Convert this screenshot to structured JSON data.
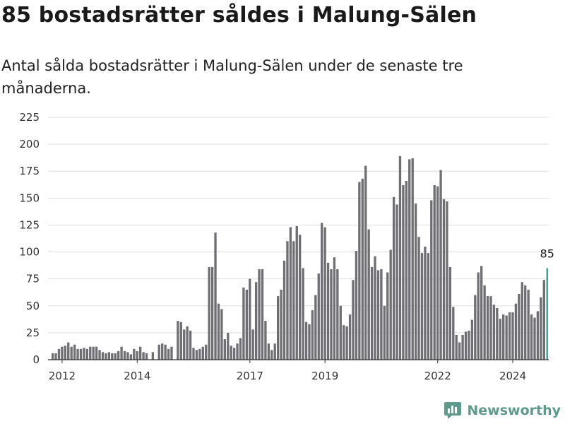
{
  "title": "85 bostadsrätter såldes i Malung-Sälen",
  "subtitle": "Antal sålda bostadsrätter i Malung-Sälen under de senaste tre månaderna.",
  "brand": {
    "name": "Newsworthy",
    "color": "#5f9b8c"
  },
  "chart_data": {
    "type": "bar",
    "title": "",
    "xlabel": "",
    "ylabel": "",
    "ylim": [
      0,
      225
    ],
    "yticks": [
      0,
      25,
      50,
      75,
      100,
      125,
      150,
      175,
      200,
      225
    ],
    "grid": true,
    "x_start": "2011-09",
    "x_end": "2024-12",
    "xticks": [
      "2012",
      "2014",
      "2017",
      "2019",
      "2022",
      "2024"
    ],
    "bar_color": "#6e6e73",
    "highlight_color": "#1f9c8c",
    "highlight_label": "85",
    "series": [
      {
        "values": [
          0,
          0,
          0,
          0,
          0,
          6,
          6,
          10,
          12,
          13,
          16,
          12,
          14,
          10,
          10,
          11,
          10,
          12,
          12,
          12,
          9,
          7,
          6,
          7,
          6,
          6,
          8,
          12,
          8,
          7,
          5,
          10,
          8,
          12,
          7,
          6,
          0,
          7,
          0,
          14,
          15,
          14,
          10,
          12,
          0,
          36,
          35,
          28,
          31,
          27,
          11,
          9,
          10,
          12,
          14,
          86,
          86,
          118,
          52,
          47,
          19,
          25,
          13,
          11,
          15,
          20,
          67,
          65,
          75,
          28,
          72,
          84,
          84,
          36,
          15,
          9,
          15,
          59,
          65,
          92,
          110,
          123,
          110,
          124,
          116,
          85,
          35,
          33,
          46,
          60,
          80,
          127,
          123,
          90,
          84,
          95,
          84,
          50,
          32,
          31,
          42,
          74,
          101,
          165,
          168,
          180,
          121,
          86,
          96,
          83,
          84,
          50,
          81,
          102,
          151,
          144,
          189,
          162,
          166,
          186,
          187,
          145,
          114,
          99,
          105,
          99,
          148,
          162,
          161,
          176,
          149,
          147,
          86,
          49,
          23,
          16,
          23,
          26,
          27,
          37,
          60,
          81,
          87,
          69,
          59,
          59,
          51,
          48,
          38,
          42,
          41,
          44,
          44,
          52,
          61,
          72,
          69,
          65,
          42,
          39,
          45,
          58,
          74,
          85
        ]
      }
    ]
  }
}
